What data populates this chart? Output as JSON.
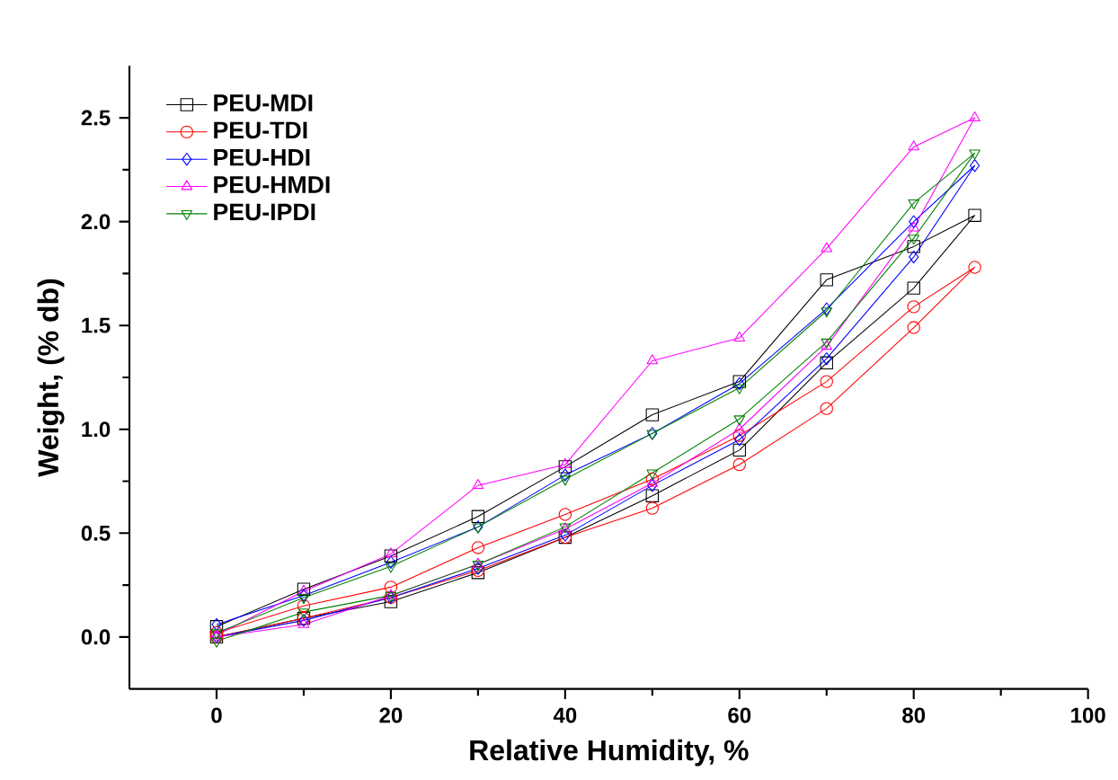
{
  "chart_data": {
    "type": "line",
    "xlabel": "Relative Humidity, %",
    "ylabel": "Weight, (% db)",
    "xlim": [
      -10,
      100
    ],
    "ylim": [
      -0.25,
      2.75
    ],
    "xticks": [
      0,
      20,
      40,
      60,
      80,
      100
    ],
    "yticks": [
      {
        "value": 0,
        "label": "0.0"
      },
      {
        "value": 0.5,
        "label": "0.5"
      },
      {
        "value": 1,
        "label": "1.0"
      },
      {
        "value": 1.5,
        "label": "1.5"
      },
      {
        "value": 2,
        "label": "2.0"
      },
      {
        "value": 2.5,
        "label": "2.5"
      }
    ],
    "grid": false,
    "legend": "top left",
    "line_style": "solid",
    "series": [
      {
        "name": "PEU-MDI",
        "color": "#000000",
        "marker": "square",
        "x": [
          0,
          10,
          20,
          30,
          40,
          50,
          60,
          70,
          80,
          87,
          80,
          70,
          60,
          50,
          40,
          30,
          20,
          10,
          0
        ],
        "values": [
          0.0,
          0.09,
          0.17,
          0.31,
          0.48,
          0.68,
          0.9,
          1.32,
          1.68,
          2.03,
          1.88,
          1.72,
          1.23,
          1.07,
          0.82,
          0.58,
          0.39,
          0.23,
          0.05
        ]
      },
      {
        "name": "PEU-TDI",
        "color": "#ff0000",
        "marker": "circle",
        "x": [
          0,
          10,
          20,
          30,
          40,
          50,
          60,
          70,
          80,
          87,
          80,
          70,
          60,
          50,
          40,
          30,
          20,
          10,
          0
        ],
        "values": [
          0.0,
          0.09,
          0.19,
          0.32,
          0.48,
          0.62,
          0.83,
          1.1,
          1.49,
          1.78,
          1.59,
          1.23,
          0.97,
          0.76,
          0.59,
          0.43,
          0.24,
          0.15,
          0.02
        ]
      },
      {
        "name": "PEU-HDI",
        "color": "#0000ff",
        "marker": "diamond",
        "x": [
          0,
          10,
          20,
          30,
          40,
          50,
          60,
          70,
          80,
          87,
          80,
          70,
          60,
          50,
          40,
          30,
          20,
          10,
          0
        ],
        "values": [
          0.0,
          0.08,
          0.19,
          0.33,
          0.49,
          0.73,
          0.95,
          1.34,
          1.83,
          2.27,
          2.0,
          1.58,
          1.22,
          0.98,
          0.78,
          0.53,
          0.36,
          0.2,
          0.06
        ]
      },
      {
        "name": "PEU-HMDI",
        "color": "#ff00ff",
        "marker": "triangle",
        "x": [
          0,
          10,
          20,
          30,
          40,
          50,
          60,
          70,
          80,
          87,
          80,
          70,
          60,
          50,
          40,
          30,
          20,
          10,
          0
        ],
        "values": [
          0.0,
          0.06,
          0.2,
          0.35,
          0.52,
          0.74,
          1.0,
          1.4,
          1.97,
          2.5,
          2.36,
          1.87,
          1.44,
          1.33,
          0.83,
          0.73,
          0.4,
          0.22,
          0.01
        ]
      },
      {
        "name": "PEU-IPDI",
        "color": "#008000",
        "marker": "triangle down",
        "x": [
          0,
          10,
          20,
          30,
          40,
          50,
          60,
          70,
          80,
          87,
          80,
          70,
          60,
          50,
          40,
          30,
          20,
          10,
          0
        ],
        "values": [
          -0.02,
          0.12,
          0.2,
          0.35,
          0.53,
          0.79,
          1.05,
          1.42,
          1.92,
          2.33,
          2.09,
          1.57,
          1.2,
          0.98,
          0.76,
          0.53,
          0.34,
          0.19,
          0.02
        ]
      }
    ]
  }
}
